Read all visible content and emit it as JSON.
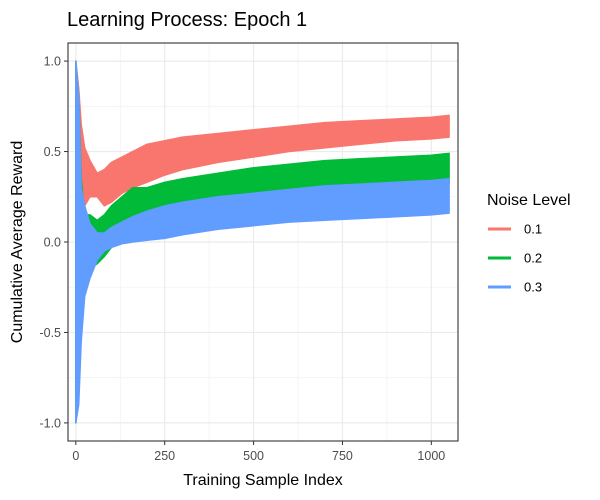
{
  "chart_data": {
    "type": "area",
    "title": "Learning Process: Epoch 1",
    "xlabel": "Training Sample Index",
    "ylabel": "Cumulative Average Reward",
    "xlim": [
      -22,
      1075
    ],
    "ylim": [
      -1.1,
      1.1
    ],
    "xticks": [
      0,
      250,
      500,
      750,
      1000
    ],
    "xtick_labels": [
      "0",
      "250",
      "500",
      "750",
      "1000"
    ],
    "yticks": [
      -1.0,
      -0.5,
      0.0,
      0.5,
      1.0
    ],
    "ytick_labels": [
      "-1.0",
      "-0.5",
      "0.0",
      "0.5",
      "1.0"
    ],
    "grid": true,
    "legend": {
      "title": "Noise Level",
      "position": "right"
    },
    "series": [
      {
        "name": "0.1",
        "color": "#F8766D",
        "x": [
          0,
          8,
          15,
          25,
          40,
          60,
          80,
          100,
          130,
          160,
          200,
          250,
          300,
          400,
          500,
          600,
          700,
          800,
          900,
          1000,
          1050
        ],
        "lower": [
          -0.2,
          0.05,
          0.2,
          0.2,
          0.25,
          0.25,
          0.2,
          0.22,
          0.27,
          0.3,
          0.33,
          0.37,
          0.4,
          0.44,
          0.47,
          0.5,
          0.52,
          0.54,
          0.56,
          0.57,
          0.58
        ],
        "upper": [
          1.0,
          0.85,
          0.65,
          0.52,
          0.45,
          0.38,
          0.4,
          0.44,
          0.47,
          0.5,
          0.54,
          0.56,
          0.58,
          0.6,
          0.62,
          0.64,
          0.66,
          0.67,
          0.68,
          0.69,
          0.7
        ]
      },
      {
        "name": "0.2",
        "color": "#00BA38",
        "x": [
          0,
          8,
          15,
          25,
          40,
          60,
          80,
          100,
          130,
          160,
          200,
          250,
          300,
          400,
          500,
          600,
          700,
          800,
          900,
          1000,
          1050
        ],
        "lower": [
          -1.0,
          -0.75,
          -0.4,
          -0.25,
          -0.15,
          -0.12,
          -0.08,
          -0.03,
          0.02,
          0.05,
          0.09,
          0.12,
          0.15,
          0.19,
          0.22,
          0.25,
          0.27,
          0.29,
          0.3,
          0.31,
          0.32
        ],
        "upper": [
          1.0,
          0.8,
          0.35,
          0.15,
          0.15,
          0.12,
          0.15,
          0.2,
          0.25,
          0.3,
          0.3,
          0.33,
          0.35,
          0.38,
          0.41,
          0.43,
          0.45,
          0.46,
          0.47,
          0.48,
          0.49
        ]
      },
      {
        "name": "0.3",
        "color": "#619CFF",
        "x": [
          0,
          8,
          15,
          25,
          40,
          60,
          80,
          100,
          130,
          160,
          200,
          250,
          300,
          400,
          500,
          600,
          700,
          800,
          900,
          1000,
          1050
        ],
        "lower": [
          -1.0,
          -0.9,
          -0.55,
          -0.3,
          -0.2,
          -0.1,
          -0.05,
          -0.03,
          -0.01,
          0.0,
          0.01,
          0.02,
          0.04,
          0.07,
          0.09,
          0.11,
          0.12,
          0.13,
          0.14,
          0.15,
          0.16
        ],
        "upper": [
          1.0,
          0.8,
          0.3,
          0.2,
          0.1,
          0.05,
          0.05,
          0.08,
          0.11,
          0.14,
          0.17,
          0.2,
          0.22,
          0.25,
          0.27,
          0.29,
          0.31,
          0.32,
          0.33,
          0.34,
          0.35
        ]
      }
    ]
  }
}
